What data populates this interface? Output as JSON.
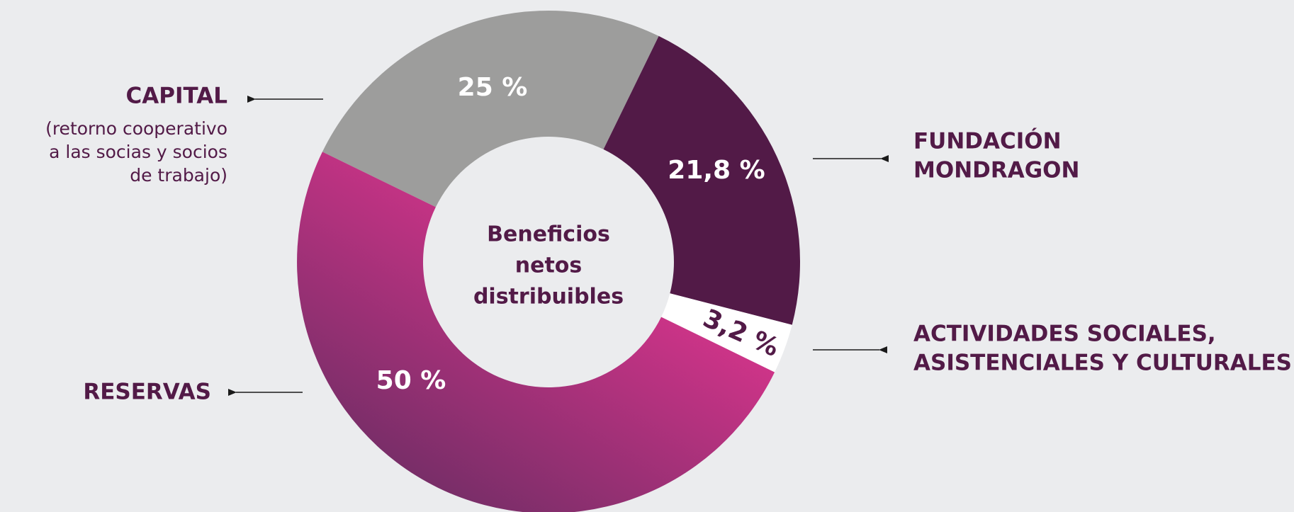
{
  "chart_data": {
    "type": "donut",
    "categories": [
      [
        "CAPITAL"
      ],
      [
        "FUNDACIÓN",
        "MONDRAGON"
      ],
      [
        "ACTIVIDADES SOCIALES,",
        "ASISTENCIALES Y CULTURALES"
      ],
      [
        "RESERVAS"
      ]
    ],
    "annotation": [
      "(retorno cooperativo",
      "a las socias y socios",
      "de trabajo)"
    ],
    "center_label": [
      "Beneficios",
      "netos",
      "distribuibles"
    ],
    "values": [
      25,
      21.8,
      3.2,
      50
    ],
    "value_labels": [
      "25 %",
      "21,8 %",
      "3,2 %",
      "50 %"
    ],
    "colors": [
      "#9d9d9c",
      "#521a47",
      "#ffffff",
      [
        "#e0358f",
        "#6b2d63"
      ]
    ]
  }
}
